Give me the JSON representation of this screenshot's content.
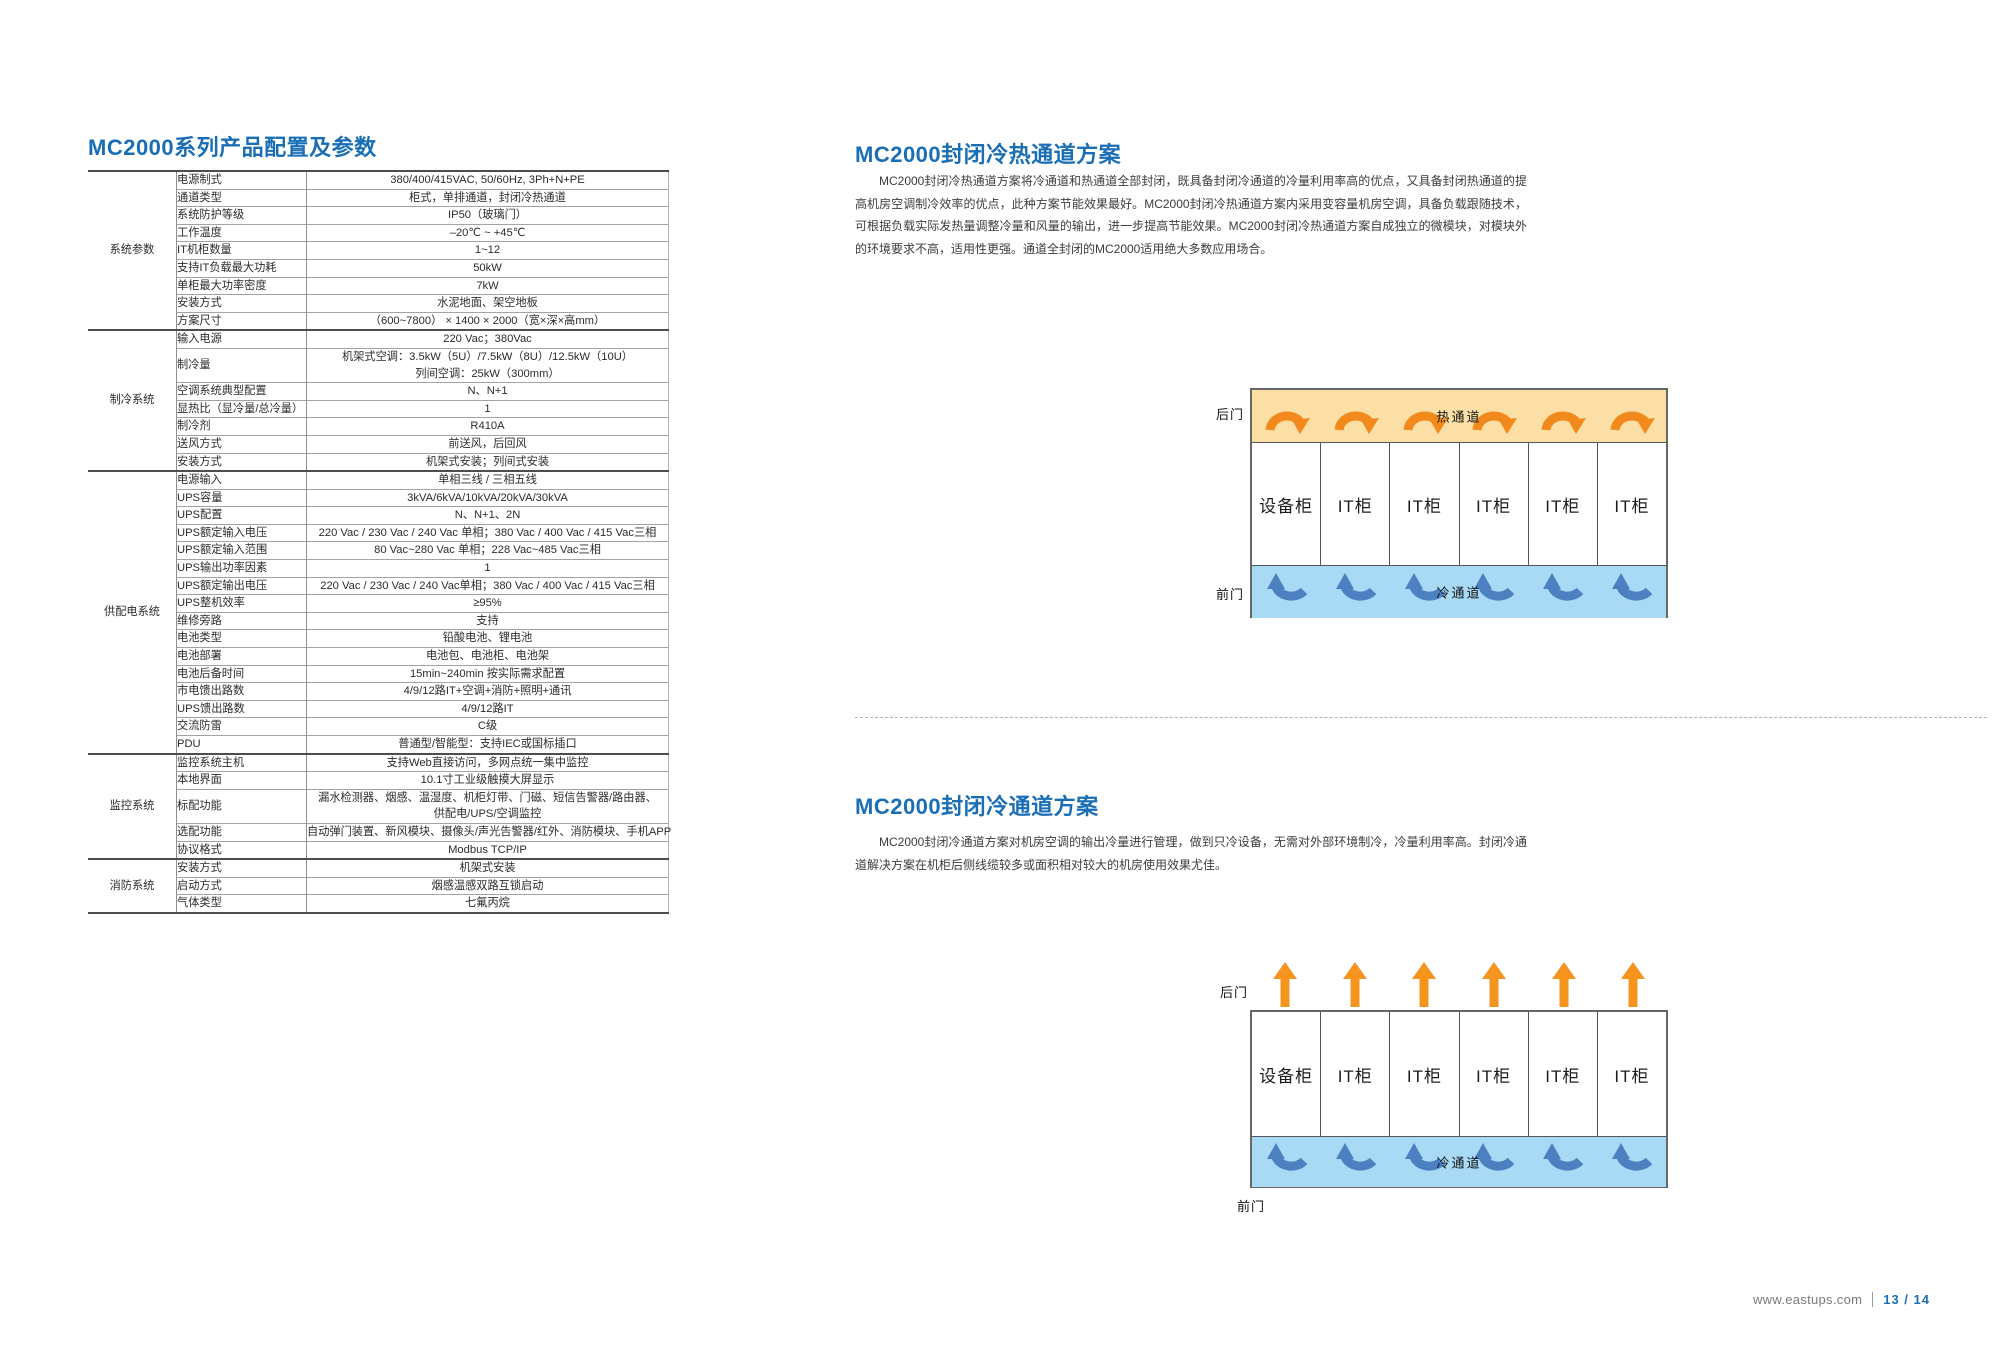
{
  "colors": {
    "accent_blue": "#1a6eb5",
    "hot_aisle_fill": "#fbdfa4",
    "hot_arrow": "#f2891c",
    "cold_aisle_fill": "#a9daf5",
    "cold_arrow": "#4c80c0",
    "table_line_dark": "#4d4d4d",
    "table_line_light": "#a3a3a3",
    "footer_gray": "#7a7a7a"
  },
  "left": {
    "title": "MC2000系列产品配置及参数",
    "table": {
      "groups": [
        {
          "category": "系统参数",
          "rows": [
            {
              "label": "电源制式",
              "value": "380/400/415VAC, 50/60Hz, 3Ph+N+PE"
            },
            {
              "label": "通道类型",
              "value": "柜式，单排通道，封闭冷热通道"
            },
            {
              "label": "系统防护等级",
              "value": "IP50（玻璃门）"
            },
            {
              "label": "工作温度",
              "value": "–20℃ ~ +45℃"
            },
            {
              "label": "IT机柜数量",
              "value": "1~12"
            },
            {
              "label": "支持IT负载最大功耗",
              "value": "50kW"
            },
            {
              "label": "单柜最大功率密度",
              "value": "7kW"
            },
            {
              "label": "安装方式",
              "value": "水泥地面、架空地板"
            },
            {
              "label": "方案尺寸",
              "value": "（600~7800） × 1400 × 2000（宽×深×高mm）"
            }
          ]
        },
        {
          "category": "制冷系统",
          "rows": [
            {
              "label": "输入电源",
              "value": "220 Vac；380Vac"
            },
            {
              "label": "制冷量",
              "lines": [
                "机架式空调：3.5kW（5U）/7.5kW（8U）/12.5kW（10U）",
                "列间空调：25kW（300mm）"
              ]
            },
            {
              "label": "空调系统典型配置",
              "value": "N、N+1"
            },
            {
              "label": "显热比（显冷量/总冷量）",
              "value": "1"
            },
            {
              "label": "制冷剂",
              "value": "R410A"
            },
            {
              "label": "送风方式",
              "value": "前送风，后回风"
            },
            {
              "label": "安装方式",
              "value": "机架式安装；列间式安装"
            }
          ]
        },
        {
          "category": "供配电系统",
          "rows": [
            {
              "label": "电源输入",
              "value": "单相三线 / 三相五线"
            },
            {
              "label": "UPS容量",
              "value": "3kVA/6kVA/10kVA/20kVA/30kVA"
            },
            {
              "label": "UPS配置",
              "value": "N、N+1、2N"
            },
            {
              "label": "UPS额定输入电压",
              "value": "220 Vac / 230 Vac / 240 Vac 单相；380 Vac / 400 Vac / 415 Vac三相"
            },
            {
              "label": "UPS额定输入范围",
              "value": "80 Vac~280 Vac 单相；228 Vac~485 Vac三相"
            },
            {
              "label": "UPS输出功率因素",
              "value": "1"
            },
            {
              "label": "UPS额定输出电压",
              "value": "220 Vac / 230 Vac / 240 Vac单相；380 Vac / 400 Vac / 415 Vac三相"
            },
            {
              "label": "UPS整机效率",
              "value": "≥95%"
            },
            {
              "label": "维修旁路",
              "value": "支持"
            },
            {
              "label": "电池类型",
              "value": "铅酸电池、锂电池"
            },
            {
              "label": "电池部署",
              "value": "电池包、电池柜、电池架"
            },
            {
              "label": "电池后备时间",
              "value": "15min~240min 按实际需求配置"
            },
            {
              "label": "市电馈出路数",
              "value": "4/9/12路IT+空调+消防+照明+通讯"
            },
            {
              "label": "UPS馈出路数",
              "value": "4/9/12路IT"
            },
            {
              "label": "交流防雷",
              "value": "C级"
            },
            {
              "label": "PDU",
              "value": "普通型/智能型：支持IEC或国标插口"
            }
          ]
        },
        {
          "category": "监控系统",
          "rows": [
            {
              "label": "监控系统主机",
              "value": "支持Web直接访问，多网点统一集中监控"
            },
            {
              "label": "本地界面",
              "value": "10.1寸工业级触摸大屏显示"
            },
            {
              "label": "标配功能",
              "lines": [
                "漏水检测器、烟感、温湿度、机柜灯带、门磁、短信告警器/路由器、",
                "供配电/UPS/空调监控"
              ]
            },
            {
              "label": "选配功能",
              "value": "自动弹门装置、新风模块、摄像头/声光告警器/红外、消防模块、手机APP"
            },
            {
              "label": "协议格式",
              "value": "Modbus TCP/IP"
            }
          ]
        },
        {
          "category": "消防系统",
          "rows": [
            {
              "label": "安装方式",
              "value": "机架式安装"
            },
            {
              "label": "启动方式",
              "value": "烟感温感双路互锁启动"
            },
            {
              "label": "气体类型",
              "value": "七氟丙烷"
            }
          ]
        }
      ]
    }
  },
  "right": {
    "sections": [
      {
        "title": "MC2000封闭冷热通道方案",
        "paragraph": "MC2000封闭冷热通道方案将冷通道和热通道全部封闭，既具备封闭冷通道的冷量利用率高的优点，又具备封闭热通道的提高机房空调制冷效率的优点，此种方案节能效果最好。MC2000封闭冷热通道方案内采用变容量机房空调，具备负载跟随技术，可根据负载实际发热量调整冷量和风量的输出，进一步提高节能效果。MC2000封闭冷热通道方案自成独立的微模块，对模块外的环境要求不高，适用性更强。通道全封闭的MC2000适用绝大多数应用场合。",
        "diagram": {
          "rear_door_label": "后门",
          "front_door_label": "前门",
          "hot_aisle_label": "热通道",
          "cold_aisle_label": "冷通道",
          "cabinets": [
            "设备柜",
            "IT柜",
            "IT柜",
            "IT柜",
            "IT柜",
            "IT柜"
          ]
        }
      },
      {
        "title": "MC2000封闭冷通道方案",
        "paragraph": "MC2000封闭冷通道方案对机房空调的输出冷量进行管理，做到只冷设备，无需对外部环境制冷，冷量利用率高。封闭冷通道解决方案在机柜后侧线缆较多或面积相对较大的机房使用效果尤佳。",
        "diagram": {
          "rear_door_label": "后门",
          "front_door_label": "前门",
          "cold_aisle_label": "冷通道",
          "cabinets": [
            "设备柜",
            "IT柜",
            "IT柜",
            "IT柜",
            "IT柜",
            "IT柜"
          ]
        }
      }
    ]
  },
  "footer": {
    "url": "www.eastups.com",
    "page": "13 / 14"
  }
}
